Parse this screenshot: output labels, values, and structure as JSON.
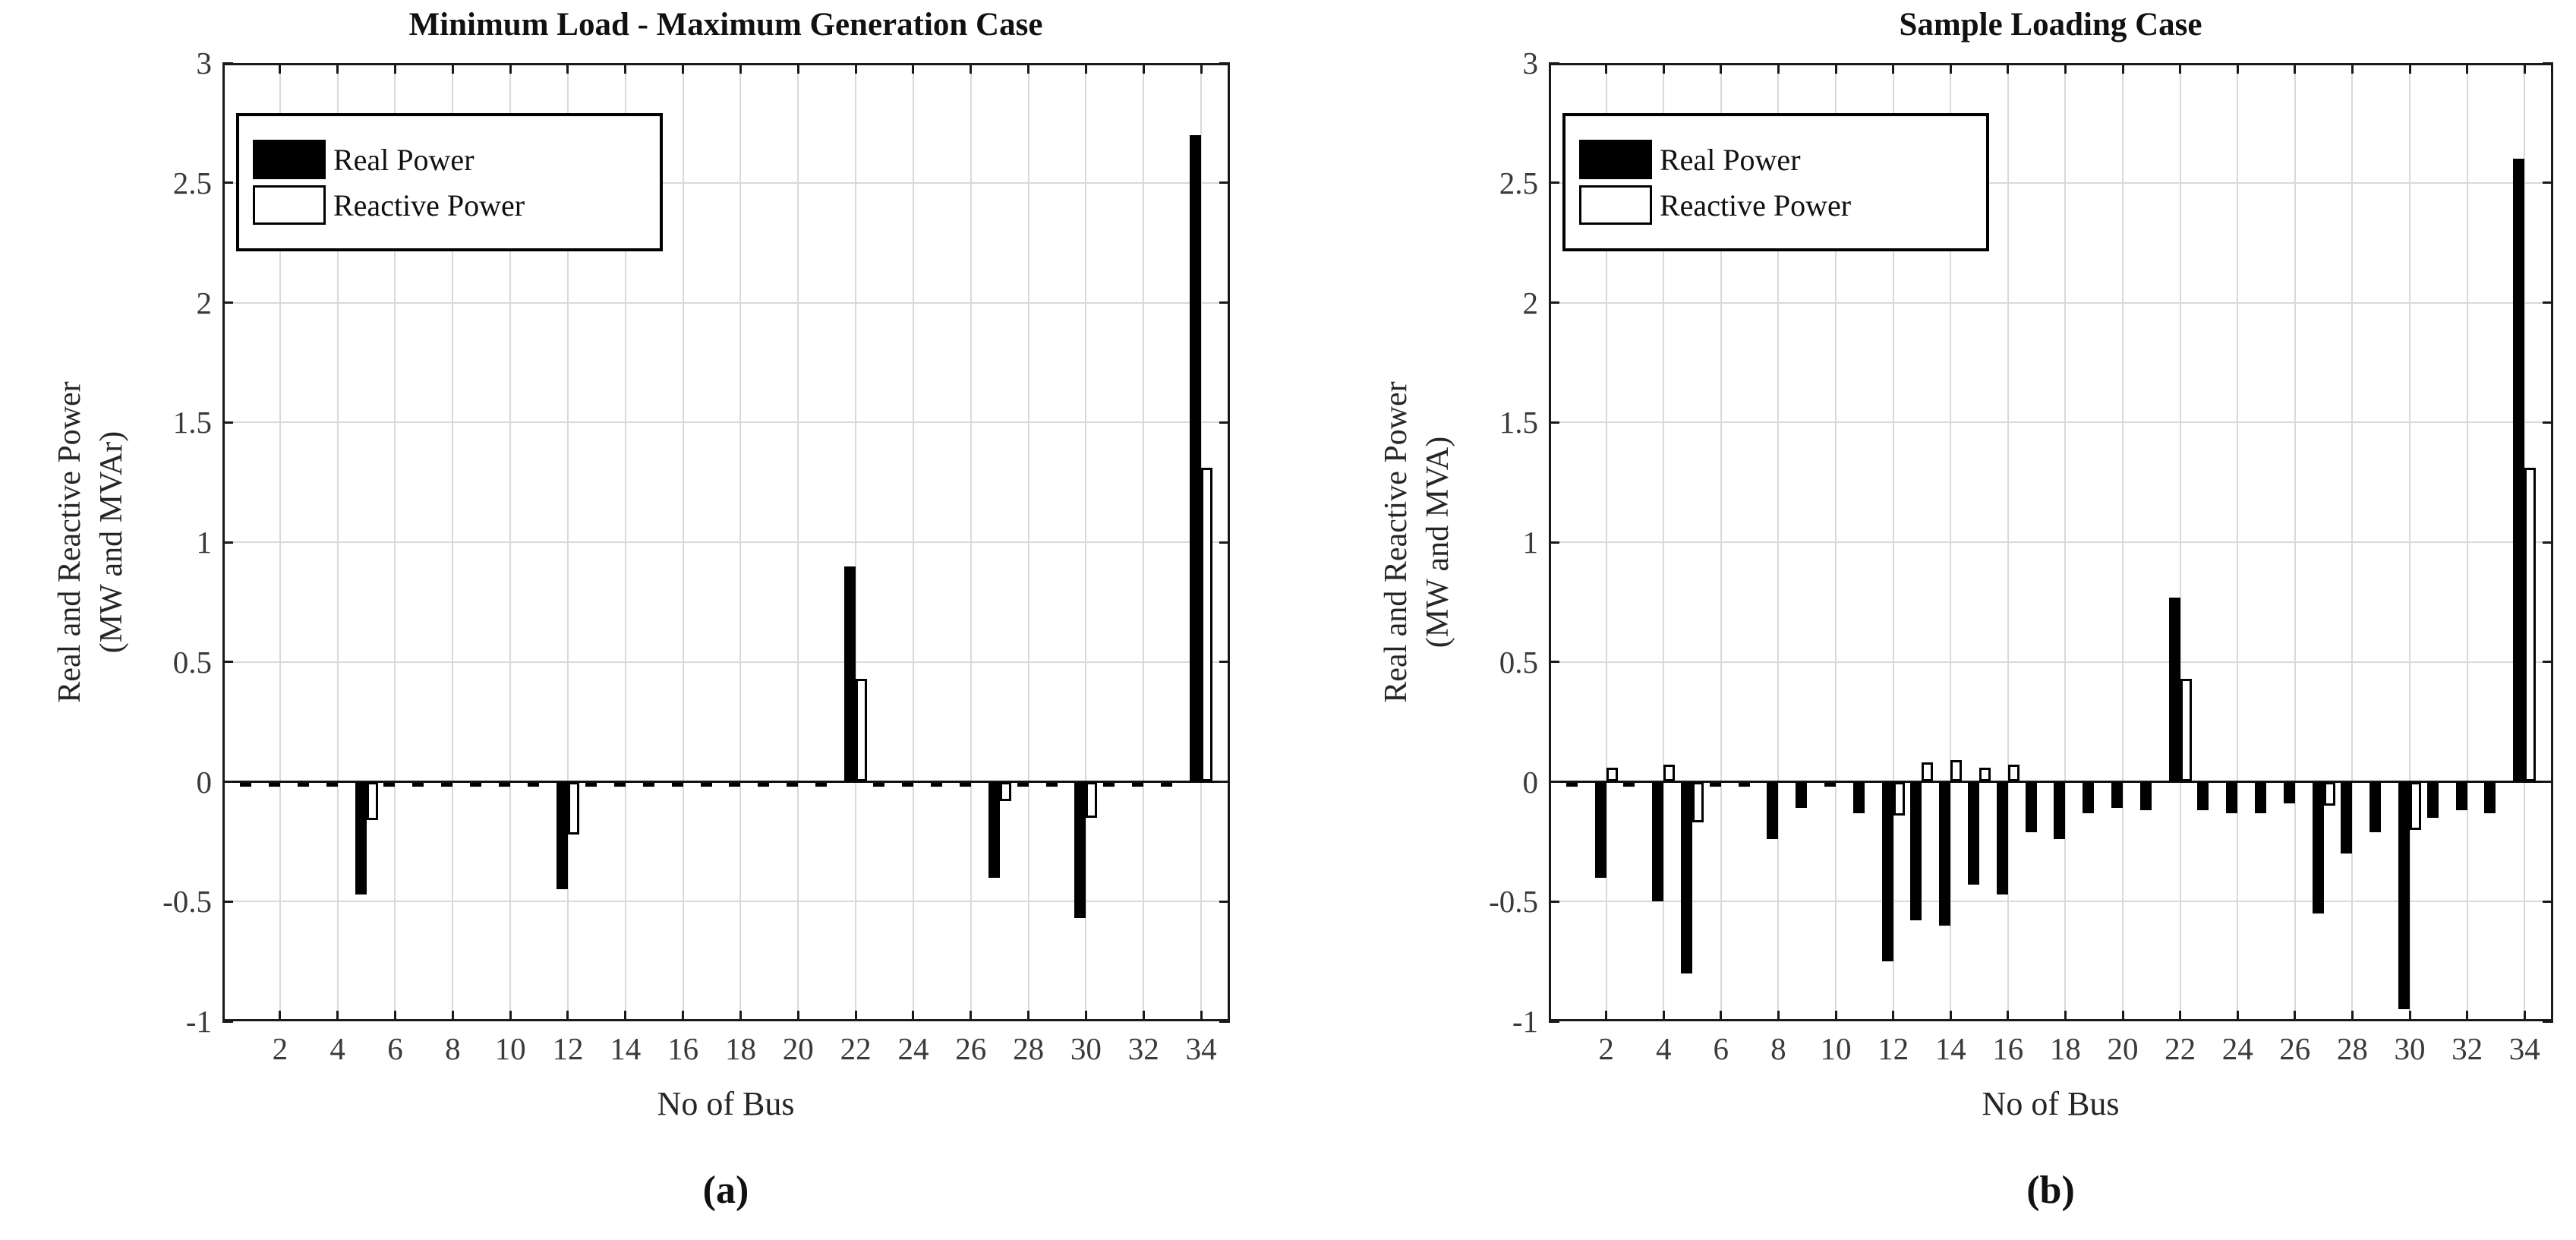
{
  "figure": {
    "background": "#ffffff",
    "captions": [
      "(a)",
      "(b)"
    ]
  },
  "colors": {
    "real_power_bar": "#000000",
    "reactive_power_bar": "#ffffff",
    "bar_outline": "#000000",
    "gridline": "#d9d9d9",
    "axis": "#1a1a1a",
    "tick_text": "#3a3a3a"
  },
  "chart_data": [
    {
      "type": "bar",
      "title": "Minimum Load - Maximum Generation Case",
      "caption": "(a)",
      "xlabel": "No of Bus",
      "ylabel": [
        "Real and Reactive Power",
        "(MW and MVAr)"
      ],
      "xlim": [
        0,
        35
      ],
      "ylim": [
        -1,
        3
      ],
      "grid": true,
      "legend_position": "top-left",
      "xticks": [
        2,
        4,
        6,
        8,
        10,
        12,
        14,
        16,
        18,
        20,
        22,
        24,
        26,
        28,
        30,
        32,
        34
      ],
      "yticks": [
        3,
        2.5,
        2,
        1.5,
        1,
        0.5,
        0,
        -0.5,
        -1
      ],
      "ytick_labels": [
        "3",
        "2.5",
        "2",
        "1.5",
        "1",
        "0.5",
        "0",
        "-0.5",
        "-1"
      ],
      "categories": [
        1,
        2,
        3,
        4,
        5,
        6,
        7,
        8,
        9,
        10,
        11,
        12,
        13,
        14,
        15,
        16,
        17,
        18,
        19,
        20,
        21,
        22,
        23,
        24,
        25,
        26,
        27,
        28,
        29,
        30,
        31,
        32,
        33,
        34
      ],
      "series": [
        {
          "name": "Real Power",
          "color": "#000000",
          "values": [
            0,
            0,
            0,
            0,
            -0.47,
            0,
            0,
            0,
            0,
            0,
            0,
            -0.45,
            0,
            0,
            0,
            0,
            0,
            0,
            0,
            0,
            0,
            0.9,
            0,
            0,
            0,
            0,
            -0.4,
            0,
            0,
            -0.57,
            0,
            0,
            0,
            2.7
          ]
        },
        {
          "name": "Reactive Power",
          "color": "#ffffff",
          "values": [
            0,
            0,
            0,
            0,
            -0.16,
            0,
            0,
            0,
            0,
            0,
            0,
            -0.22,
            0,
            0,
            0,
            0,
            0,
            0,
            0,
            0,
            0,
            0.43,
            0,
            0,
            0,
            0,
            -0.08,
            0,
            0,
            -0.15,
            0,
            0,
            0,
            1.31
          ]
        }
      ]
    },
    {
      "type": "bar",
      "title": "Sample Loading Case",
      "caption": "(b)",
      "xlabel": "No of Bus",
      "ylabel": [
        "Real and Reactive Power",
        "(MW and MVA)"
      ],
      "xlim": [
        0,
        35
      ],
      "ylim": [
        -1,
        3
      ],
      "grid": true,
      "legend_position": "top-left",
      "xticks": [
        2,
        4,
        6,
        8,
        10,
        12,
        14,
        16,
        18,
        20,
        22,
        24,
        26,
        28,
        30,
        32,
        34
      ],
      "yticks": [
        3,
        2.5,
        2,
        1.5,
        1,
        0.5,
        0,
        -0.5,
        -1
      ],
      "ytick_labels": [
        "3",
        "2.5",
        "2",
        "1.5",
        "1",
        "0.5",
        "0",
        "-0.5",
        "-1"
      ],
      "categories": [
        1,
        2,
        3,
        4,
        5,
        6,
        7,
        8,
        9,
        10,
        11,
        12,
        13,
        14,
        15,
        16,
        17,
        18,
        19,
        20,
        21,
        22,
        23,
        24,
        25,
        26,
        27,
        28,
        29,
        30,
        31,
        32,
        33,
        34
      ],
      "series": [
        {
          "name": "Real Power",
          "color": "#000000",
          "values": [
            0,
            -0.4,
            0,
            -0.5,
            -0.8,
            0,
            0,
            -0.24,
            -0.11,
            0,
            -0.13,
            -0.75,
            -0.58,
            -0.6,
            -0.43,
            -0.47,
            -0.21,
            -0.24,
            -0.13,
            -0.11,
            -0.12,
            0.77,
            -0.12,
            -0.13,
            -0.13,
            -0.09,
            -0.55,
            -0.3,
            -0.21,
            -0.95,
            -0.15,
            -0.12,
            -0.13,
            2.6
          ]
        },
        {
          "name": "Reactive Power",
          "color": "#ffffff",
          "values": [
            0,
            0.06,
            0,
            0.07,
            -0.17,
            0,
            0,
            0,
            0,
            0,
            0,
            -0.14,
            0.08,
            0.09,
            0.06,
            0.07,
            0,
            0,
            0,
            0,
            0,
            0.43,
            0,
            0,
            0,
            0,
            -0.1,
            0,
            0,
            -0.2,
            0,
            0,
            0,
            1.31
          ]
        }
      ]
    }
  ]
}
